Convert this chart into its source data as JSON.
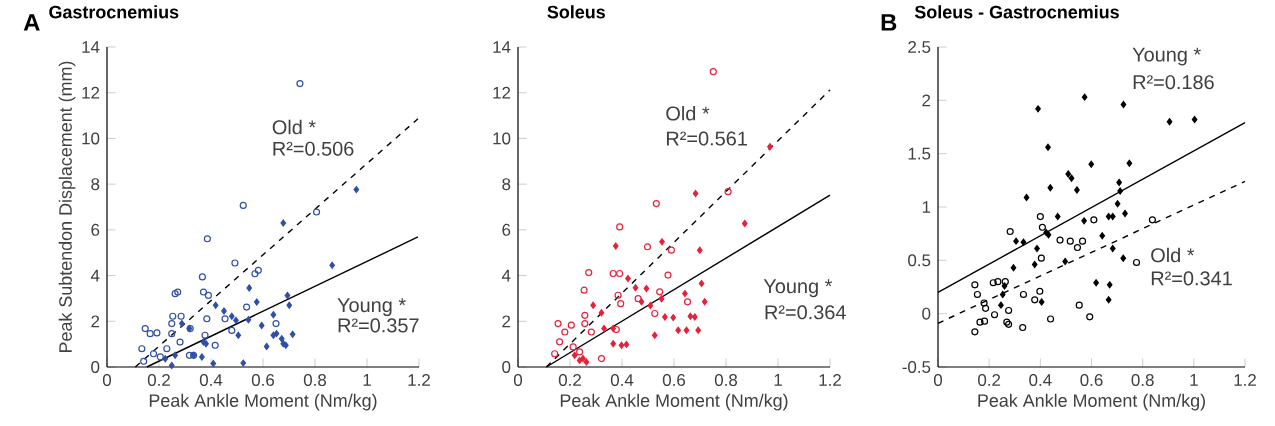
{
  "chart_data": [
    {
      "type": "scatter",
      "title": "Gastrocnemius",
      "xlabel": "Peak Ankle Moment (Nm/kg)",
      "ylabel": "Peak Subtendon Displacement (mm)",
      "xlim": [
        0,
        1.2
      ],
      "ylim": [
        0,
        14
      ],
      "xticks": [
        0,
        0.2,
        0.4,
        0.6,
        0.8,
        1,
        1.2
      ],
      "yticks": [
        0,
        2,
        4,
        6,
        8,
        10,
        12,
        14
      ],
      "annotations": [
        "A",
        "Old *",
        "R²=0.506",
        "Young *",
        "R²=0.357"
      ],
      "series": [
        {
          "color": "#2f4fa8",
          "marker": "circle",
          "x": [
            0.742,
            0.524,
            0.386,
            0.492,
            0.806,
            0.569,
            0.582,
            0.367,
            0.262,
            0.272,
            0.371,
            0.39,
            0.537,
            0.384,
            0.253,
            0.285,
            0.32,
            0.147,
            0.166,
            0.192,
            0.249,
            0.281,
            0.23,
            0.134,
            0.179,
            0.141,
            0.205,
            0.317,
            0.333,
            0.377,
            0.416,
            0.48,
            0.65,
            0.454,
            0.249
          ],
          "values": [
            12.4,
            7.07,
            5.61,
            4.55,
            6.78,
            4.08,
            4.23,
            3.94,
            3.21,
            3.28,
            3.28,
            3.13,
            2.62,
            2.11,
            2.22,
            2.22,
            1.68,
            1.68,
            1.46,
            1.49,
            1.46,
            1.09,
            0.8,
            0.8,
            0.58,
            0.25,
            0.44,
            0.51,
            0.51,
            1.39,
            0.95,
            1.6,
            1.9,
            2.11,
            1.9
          ]
        },
        {
          "color": "#2f4fa8",
          "marker": "diamond",
          "x": [
            0.959,
            0.678,
            0.866,
            0.547,
            0.694,
            0.701,
            0.576,
            0.418,
            0.45,
            0.48,
            0.496,
            0.544,
            0.64,
            0.595,
            0.288,
            0.317,
            0.505,
            0.652,
            0.64,
            0.672,
            0.714,
            0.678,
            0.688,
            0.614,
            0.371,
            0.381,
            0.365,
            0.333,
            0.262,
            0.224,
            0.249,
            0.409,
            0.524
          ],
          "values": [
            7.76,
            6.3,
            4.45,
            3.46,
            3.13,
            2.7,
            2.84,
            2.7,
            2.45,
            2.22,
            2.04,
            2.07,
            2.29,
            1.82,
            1.9,
            1.68,
            1.39,
            1.46,
            1.39,
            1.24,
            1.43,
            1.02,
            0.95,
            0.9,
            1.09,
            1.02,
            0.44,
            0.51,
            0.51,
            0.36,
            0.07,
            0.15,
            0.17
          ]
        },
        {
          "type": "line",
          "color": "#000000",
          "line_style": "dashed",
          "x": [
            0.109,
            1.196
          ],
          "values": [
            0,
            10.86
          ]
        },
        {
          "type": "line",
          "color": "#000000",
          "line_style": "solid",
          "x": [
            0.153,
            1.196
          ],
          "values": [
            0,
            5.69
          ]
        }
      ]
    },
    {
      "type": "scatter",
      "title": "Soleus",
      "xlabel": "Peak Ankle Moment (Nm/kg)",
      "xlim": [
        0,
        1.2
      ],
      "ylim": [
        0,
        14
      ],
      "xticks": [
        0,
        0.2,
        0.4,
        0.6,
        0.8,
        1,
        1.2
      ],
      "yticks": [
        0,
        2,
        4,
        6,
        8,
        10,
        12,
        14
      ],
      "annotations": [
        "Old *",
        "R²=0.561",
        "Young *",
        "R²=0.364"
      ],
      "series": [
        {
          "color": "#e8203a",
          "marker": "circle",
          "x": [
            0.751,
            0.532,
            0.391,
            0.808,
            0.498,
            0.59,
            0.577,
            0.272,
            0.366,
            0.391,
            0.254,
            0.385,
            0.395,
            0.462,
            0.545,
            0.652,
            0.257,
            0.526,
            0.154,
            0.205,
            0.257,
            0.18,
            0.282,
            0.378,
            0.16,
            0.212,
            0.141,
            0.321,
            0.237
          ],
          "values": [
            12.92,
            7.15,
            6.13,
            7.67,
            5.26,
            5.11,
            4.02,
            4.13,
            4.09,
            4.09,
            3.36,
            3.14,
            2.77,
            2.99,
            3.29,
            2.85,
            2.26,
            2.34,
            1.9,
            1.83,
            1.9,
            1.53,
            1.53,
            1.64,
            1.1,
            0.88,
            0.58,
            0.37,
            0.66
          ]
        },
        {
          "color": "#e8203a",
          "marker": "diamond",
          "x": [
            0.969,
            0.683,
            0.872,
            0.376,
            0.554,
            0.699,
            0.423,
            0.452,
            0.494,
            0.706,
            0.642,
            0.718,
            0.475,
            0.509,
            0.552,
            0.289,
            0.321,
            0.663,
            0.68,
            0.597,
            0.565,
            0.331,
            0.366,
            0.616,
            0.648,
            0.693,
            0.526,
            0.366,
            0.398,
            0.417,
            0.218,
            0.25,
            0.263,
            0.237
          ],
          "values": [
            9.64,
            7.59,
            6.28,
            5.29,
            5.48,
            5.11,
            3.87,
            3.47,
            3.43,
            3.65,
            3.21,
            2.85,
            2.85,
            2.69,
            2.99,
            2.7,
            2.37,
            2.22,
            2.19,
            2.16,
            2.19,
            1.68,
            1.68,
            1.61,
            1.61,
            1.61,
            1.39,
            1.02,
            0.95,
            0.99,
            0.51,
            0.37,
            0.22,
            0.29
          ]
        },
        {
          "type": "line",
          "color": "#000000",
          "line_style": "dashed",
          "x": [
            0.109,
            1.2
          ],
          "values": [
            0,
            12.12
          ]
        },
        {
          "type": "line",
          "color": "#000000",
          "line_style": "solid",
          "x": [
            0.109,
            1.2
          ],
          "values": [
            0,
            7.52
          ]
        }
      ]
    },
    {
      "type": "scatter",
      "title": "Soleus - Gastrocnemius",
      "xlabel": "Peak Ankle Moment (Nm/kg)",
      "xlim": [
        0,
        1.2
      ],
      "ylim": [
        -0.5,
        2.5
      ],
      "xticks": [
        0,
        0.2,
        0.4,
        0.6,
        0.8,
        1,
        1.2
      ],
      "yticks": [
        -0.5,
        0,
        0.5,
        1,
        1.5,
        2,
        2.5
      ],
      "annotations": [
        "B",
        "Young *",
        "R²=0.186",
        "Old *",
        "R²=0.341"
      ],
      "series": [
        {
          "color": "#000000",
          "marker": "circle",
          "x": [
            0.4,
            0.408,
            0.609,
            0.838,
            0.282,
            0.477,
            0.517,
            0.565,
            0.545,
            0.404,
            0.776,
            0.144,
            0.154,
            0.216,
            0.234,
            0.263,
            0.334,
            0.398,
            0.378,
            0.18,
            0.186,
            0.276,
            0.221,
            0.164,
            0.182,
            0.269,
            0.276,
            0.331,
            0.144,
            0.44,
            0.552,
            0.593
          ],
          "values": [
            0.91,
            0.81,
            0.88,
            0.88,
            0.77,
            0.69,
            0.68,
            0.68,
            0.62,
            0.52,
            0.48,
            0.27,
            0.18,
            0.29,
            0.3,
            0.3,
            0.18,
            0.21,
            0.13,
            0.1,
            0.05,
            0.03,
            -0.01,
            -0.08,
            -0.07,
            -0.08,
            -0.1,
            -0.13,
            -0.17,
            -0.05,
            0.08,
            -0.03
          ]
        },
        {
          "color": "#000000",
          "marker": "diamond",
          "x": [
            0.391,
            0.573,
            0.725,
            0.905,
            1.003,
            0.43,
            0.599,
            0.748,
            0.509,
            0.522,
            0.439,
            0.543,
            0.346,
            0.708,
            0.712,
            0.702,
            0.731,
            0.468,
            0.571,
            0.667,
            0.683,
            0.423,
            0.432,
            0.642,
            0.305,
            0.334,
            0.387,
            0.295,
            0.378,
            0.497,
            0.683,
            0.724,
            0.618,
            0.671,
            0.667,
            0.405,
            0.246,
            0.253,
            0.26
          ],
          "values": [
            1.92,
            2.03,
            1.96,
            1.8,
            1.82,
            1.56,
            1.4,
            1.41,
            1.31,
            1.27,
            1.18,
            1.16,
            1.09,
            1.23,
            1.15,
            1.03,
            0.94,
            0.91,
            0.87,
            0.91,
            0.91,
            0.76,
            0.74,
            0.73,
            0.68,
            0.67,
            0.61,
            0.43,
            0.46,
            0.49,
            0.61,
            0.52,
            0.29,
            0.27,
            0.13,
            0.11,
            0.08,
            0.18,
            0.26
          ]
        },
        {
          "type": "line",
          "color": "#000000",
          "line_style": "dashed",
          "x": [
            0,
            1.2
          ],
          "values": [
            -0.09,
            1.24
          ]
        },
        {
          "type": "line",
          "color": "#000000",
          "line_style": "solid",
          "x": [
            0,
            1.2
          ],
          "values": [
            0.2,
            1.79
          ]
        }
      ]
    }
  ]
}
